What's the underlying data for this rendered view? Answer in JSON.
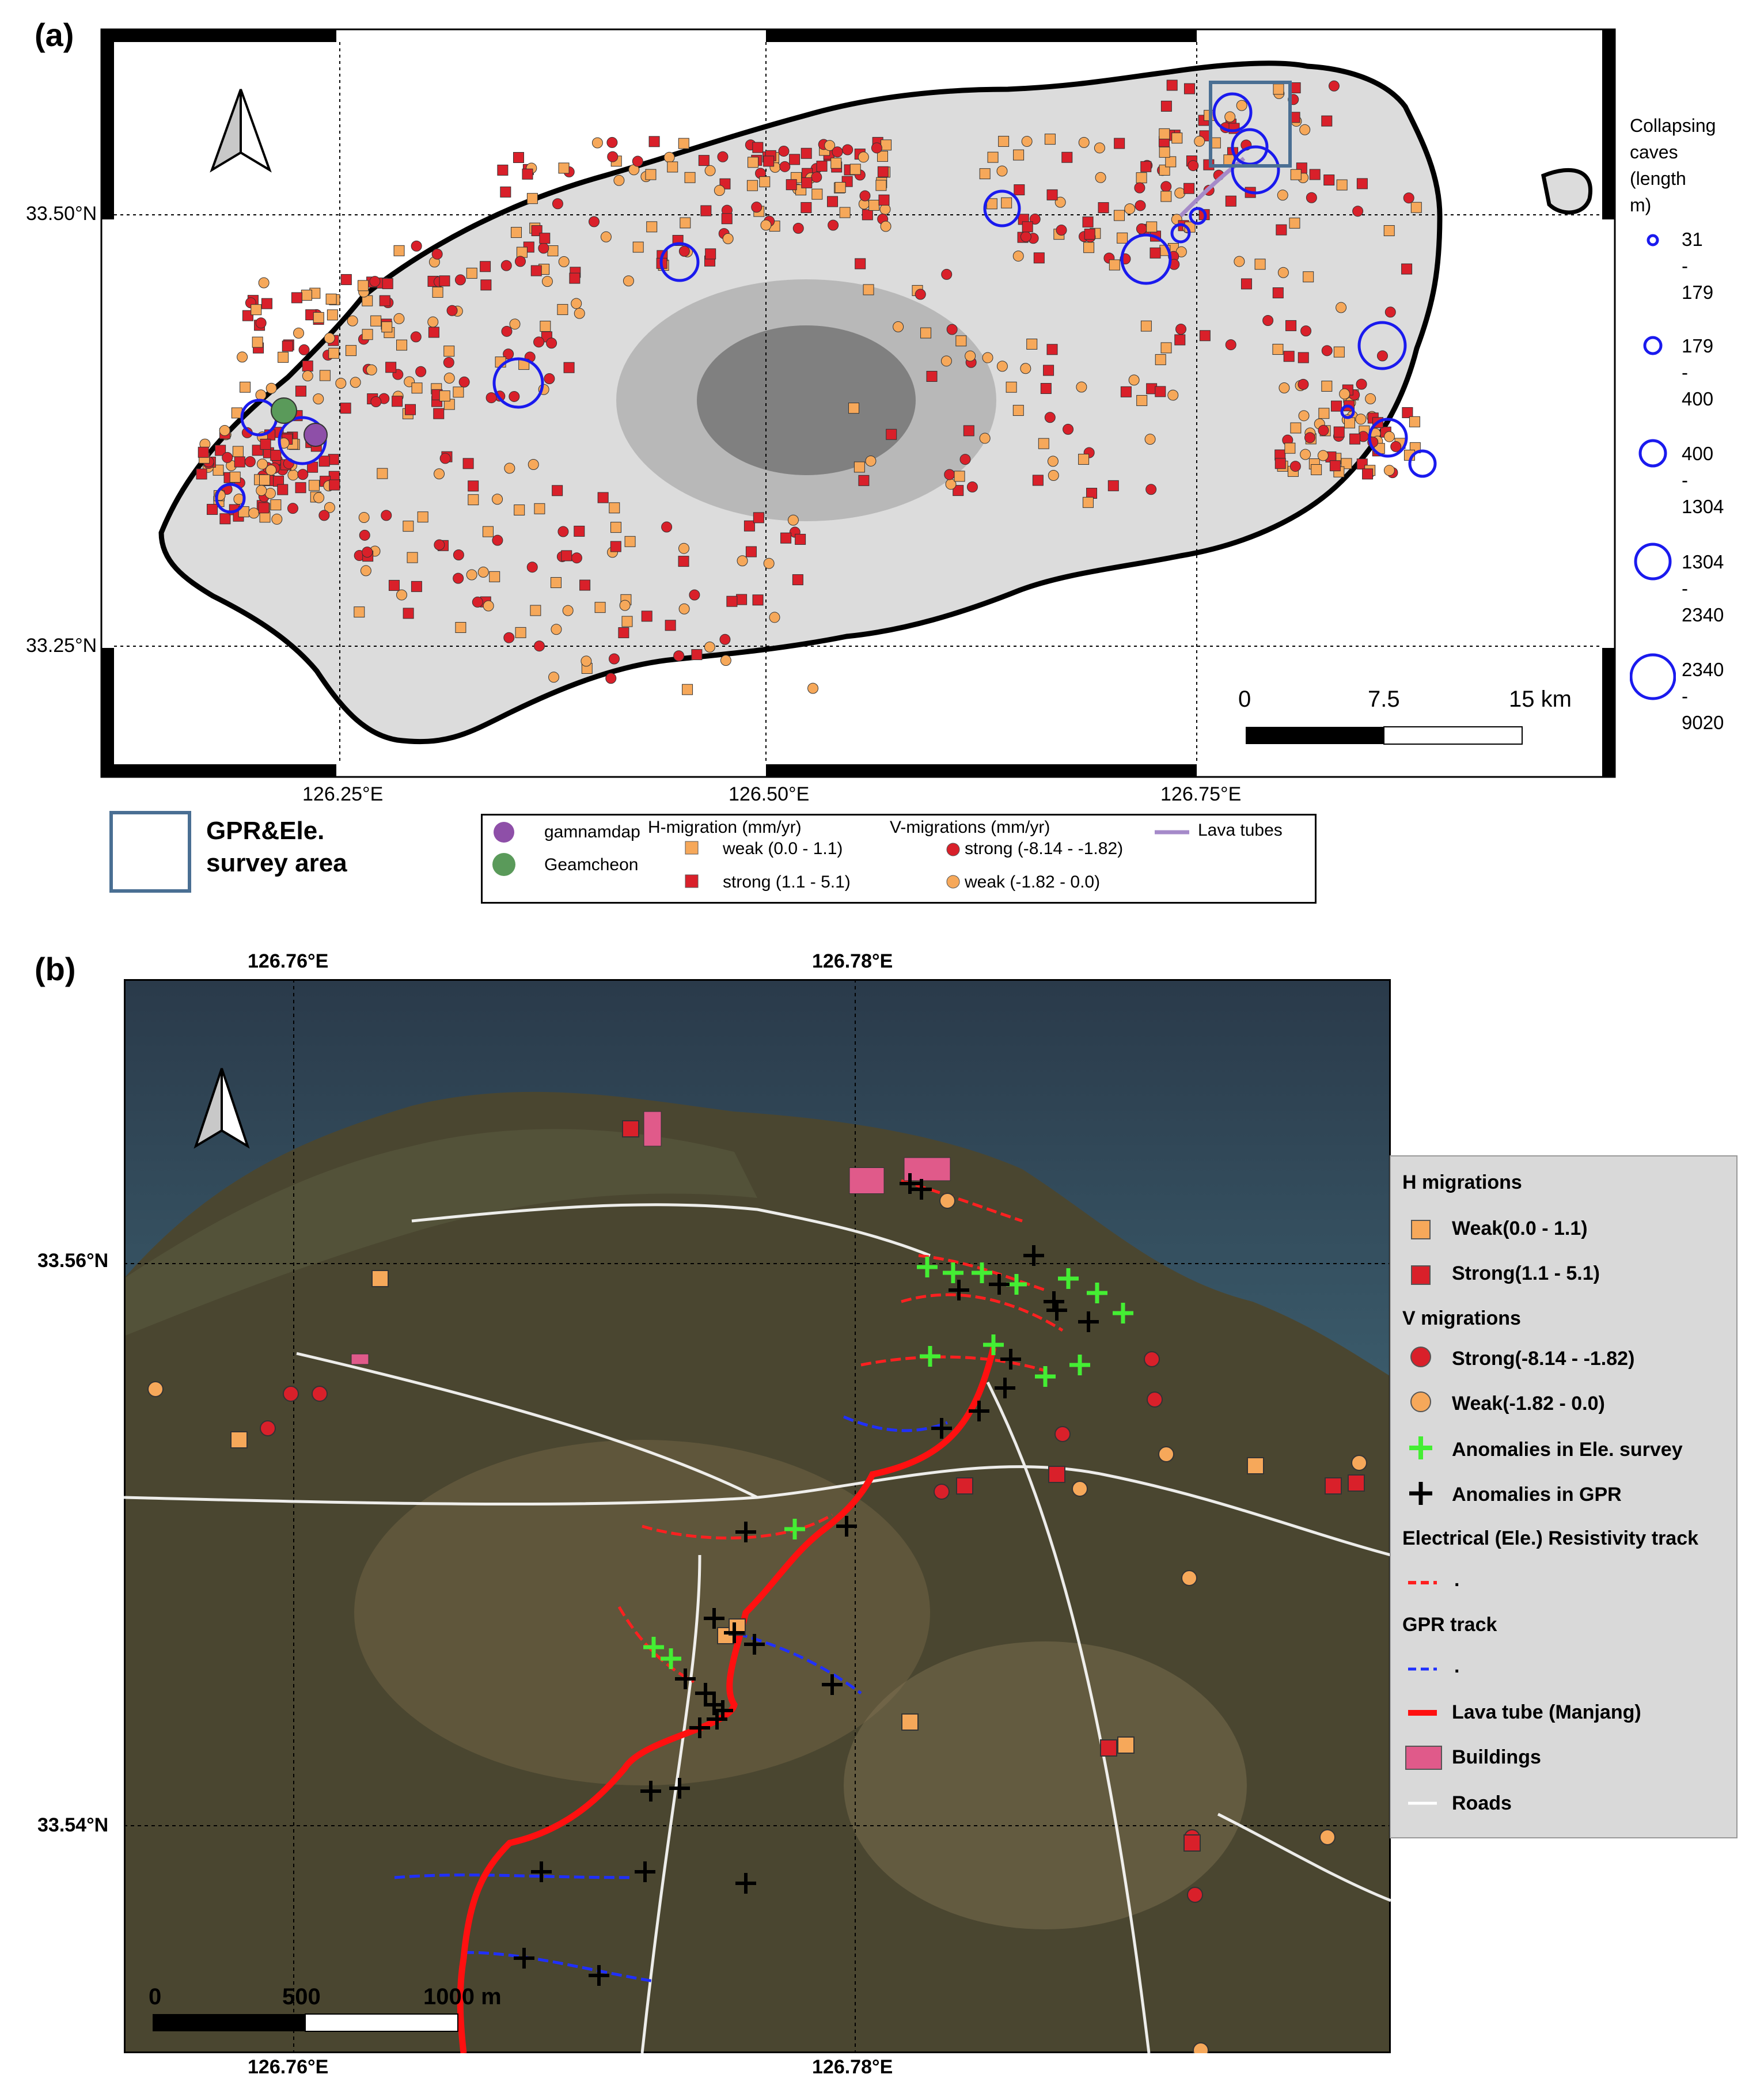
{
  "panel_a": {
    "label": "(a)",
    "lat_ticks": [
      "33.50°N",
      "33.25°N"
    ],
    "lon_ticks": [
      "126.25°E",
      "126.50°E",
      "126.75°E"
    ],
    "scalebar": {
      "labels": [
        "0",
        "7.5",
        "15 km"
      ]
    },
    "cave_legend": {
      "title": "Collapsing\ncaves\n(length\nm)",
      "classes": [
        {
          "range": "31\n-\n179",
          "size": 1
        },
        {
          "range": "179\n-\n400",
          "size": 2
        },
        {
          "range": "400\n-\n1304",
          "size": 3
        },
        {
          "range": "1304\n-\n2340",
          "size": 4
        },
        {
          "range": "2340\n-\n9020",
          "size": 5
        }
      ]
    },
    "survey_box_label": "GPR&Ele.\nsurvey area",
    "legend": {
      "gamnamdap": "gamnamdap",
      "geamcheon": "Geamcheon",
      "h_title": "H-migration (mm/yr)",
      "h_weak": "weak (0.0 - 1.1)",
      "h_strong": "strong (1.1 - 5.1)",
      "v_title": "V-migrations (mm/yr)",
      "v_strong": "strong (-8.14 - -1.82)",
      "v_weak": "weak (-1.82 - 0.0)",
      "lava": "Lava tubes"
    }
  },
  "panel_b": {
    "label": "(b)",
    "lon_ticks": [
      "126.76°E",
      "126.78°E"
    ],
    "lat_ticks": [
      "33.56°N",
      "33.54°N"
    ],
    "scalebar": {
      "labels": [
        "0",
        "500",
        "1000 m"
      ]
    },
    "legend": {
      "h_title": "H migrations",
      "h_weak": "Weak(0.0 - 1.1)",
      "h_strong": "Strong(1.1 - 5.1)",
      "v_title": "V migrations",
      "v_strong": "Strong(-8.14 - -1.82)",
      "v_weak": "Weak(-1.82 - 0.0)",
      "ele_anom": "Anomalies in Ele. survey",
      "gpr_anom": "Anomalies in GPR",
      "ele_track": "Electrical (Ele.) Resistivity track",
      "ele_track_dot": ".",
      "gpr_track": "GPR track",
      "gpr_track_dot": ".",
      "lava": "Lava tube (Manjang)",
      "buildings": "Buildings",
      "roads": "Roads"
    }
  },
  "colors": {
    "h_weak": "#f6a85a",
    "h_strong": "#d9202a",
    "v_strong": "#d9202a",
    "v_weak": "#f6a85a",
    "cave": "#1a1aee",
    "gamnamdap": "#8e4fa8",
    "geamcheon": "#5a9a5a",
    "lava_a": "#a58ac9",
    "lava_b": "#ff1010",
    "ele_anom": "#44ee33",
    "gpr_anom": "#000000",
    "survey_box": "#4a6f93",
    "building": "#e05a8a"
  }
}
